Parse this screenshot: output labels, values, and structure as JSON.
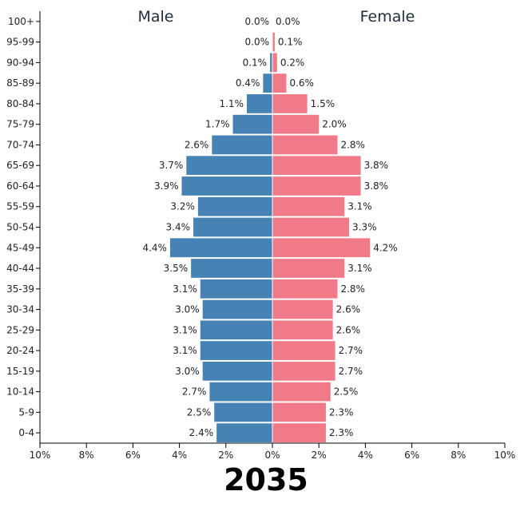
{
  "chart_data": {
    "type": "bar",
    "orientation": "horizontal-diverging",
    "title": "2035",
    "xlabel": "",
    "ylabel": "",
    "xlim": [
      -10,
      10
    ],
    "x_ticks": [
      -10,
      -8,
      -6,
      -4,
      -2,
      0,
      2,
      4,
      6,
      8,
      10
    ],
    "x_tick_labels": [
      "10%",
      "8%",
      "6%",
      "4%",
      "2%",
      "0%",
      "2%",
      "4%",
      "6%",
      "8%",
      "10%"
    ],
    "categories": [
      "100+",
      "95-99",
      "90-94",
      "85-89",
      "80-84",
      "75-79",
      "70-74",
      "65-69",
      "60-64",
      "55-59",
      "50-54",
      "45-49",
      "40-44",
      "35-39",
      "30-34",
      "25-29",
      "20-24",
      "15-19",
      "10-14",
      "5-9",
      "0-4"
    ],
    "series": [
      {
        "name": "Male",
        "color": "#4682b4",
        "side": "left",
        "values": [
          0.0,
          0.0,
          0.1,
          0.4,
          1.1,
          1.7,
          2.6,
          3.7,
          3.9,
          3.2,
          3.4,
          4.4,
          3.5,
          3.1,
          3.0,
          3.1,
          3.1,
          3.0,
          2.7,
          2.5,
          2.4
        ]
      },
      {
        "name": "Female",
        "color": "#f07a87",
        "side": "right",
        "values": [
          0.0,
          0.1,
          0.2,
          0.6,
          1.5,
          2.0,
          2.8,
          3.8,
          3.8,
          3.1,
          3.3,
          4.2,
          3.1,
          2.8,
          2.6,
          2.6,
          2.7,
          2.7,
          2.5,
          2.3,
          2.3
        ]
      }
    ],
    "value_suffix": "%",
    "grid": false
  }
}
